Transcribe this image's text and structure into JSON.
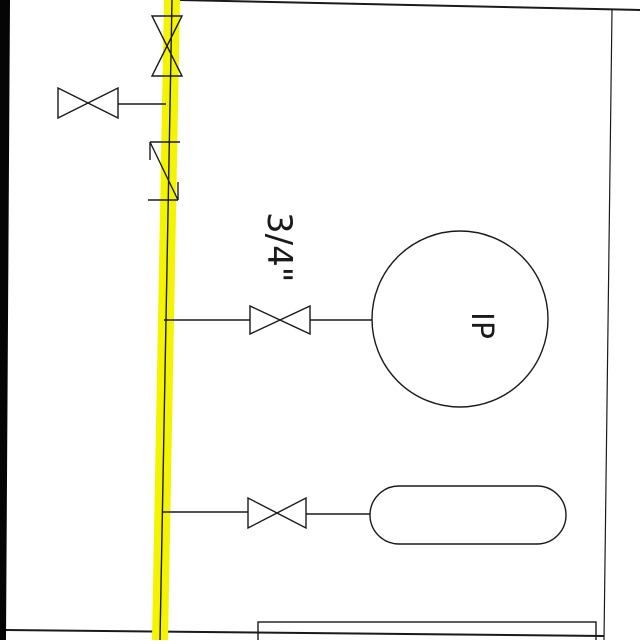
{
  "colors": {
    "line": "#1a1a1a",
    "highlight": "#f4f400",
    "background": "#ffffff",
    "left_band": "#050505"
  },
  "annotations": {
    "pipe_size": "3/4\"",
    "instrument_tag": "IP"
  },
  "symbols": [
    "gate-valve",
    "check-valve",
    "pressure-instrument-circle",
    "vessel-capsule",
    "highlighted-main-line"
  ]
}
